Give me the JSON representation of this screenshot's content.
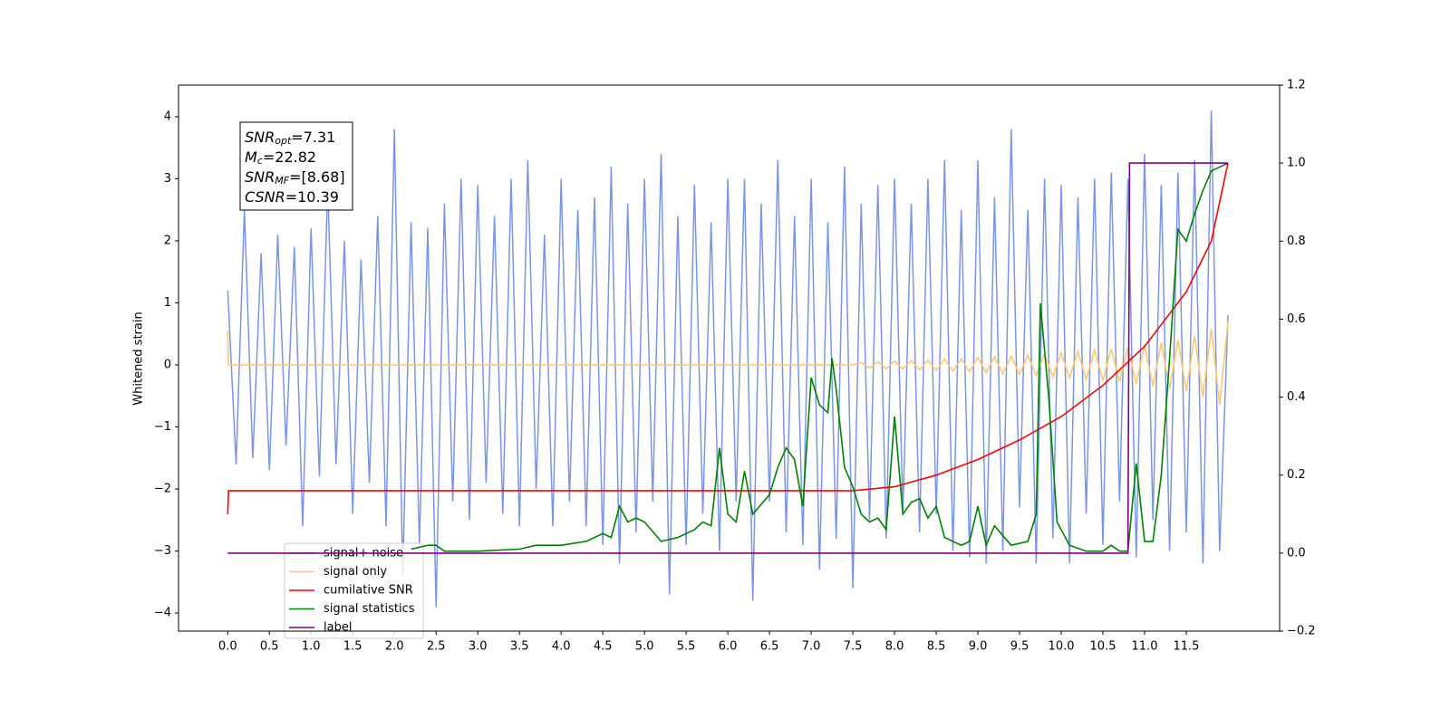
{
  "chart_data": {
    "type": "line",
    "y_label": "Whitened strain",
    "xlim": [
      -0.59,
      12.62
    ],
    "ylim": [
      -4.29,
      4.51
    ],
    "y2lim": [
      -0.2,
      1.2
    ],
    "xticks": [
      {
        "value": 0,
        "label": "0.0"
      },
      0.5,
      {
        "value": 1,
        "label": "1.0"
      },
      1.5,
      {
        "value": 2,
        "label": "2.0"
      },
      2.5,
      {
        "value": 3,
        "label": "3.0"
      },
      3.5,
      {
        "value": 4,
        "label": "4.0"
      },
      4.5,
      {
        "value": 5,
        "label": "5.0"
      },
      5.5,
      {
        "value": 6,
        "label": "6.0"
      },
      6.5,
      {
        "value": 7,
        "label": "7.0"
      },
      7.5,
      {
        "value": 8,
        "label": "8.0"
      },
      8.5,
      {
        "value": 9,
        "label": "9.0"
      },
      9.5,
      {
        "value": 10,
        "label": "10.0"
      },
      10.5,
      {
        "value": 11,
        "label": "11.0"
      },
      11.5
    ],
    "yticks": [
      {
        "value": -4,
        "label": "−4"
      },
      {
        "value": -3,
        "label": "−3"
      },
      {
        "value": -2,
        "label": "−2"
      },
      {
        "value": -1,
        "label": "−1"
      },
      0,
      1,
      2,
      3,
      4
    ],
    "y2ticks": [
      {
        "value": -0.2,
        "label": "−0.2"
      },
      {
        "value": 0,
        "label": "0.0"
      },
      0.2,
      0.4,
      0.6,
      0.8,
      {
        "value": 1,
        "label": "1.0"
      },
      1.2
    ],
    "legend": "lower left",
    "annotations": [
      {
        "text": "SNR",
        "sub": "opt",
        "value": "=7.31"
      },
      {
        "text": "M",
        "sub": "c",
        "value": "=22.82"
      },
      {
        "text": "SNR",
        "sub": "MF",
        "value": "=[8.68]"
      },
      {
        "text": "CSNR",
        "value": "=10.39"
      }
    ],
    "series": [
      {
        "name": "signal+ noise",
        "color": "#7b95e6",
        "x": [
          0,
          0.1,
          0.2,
          0.3,
          0.4,
          0.5,
          0.6,
          0.7,
          0.8,
          0.9,
          1,
          1.1,
          1.2,
          1.3,
          1.4,
          1.5,
          1.6,
          1.7,
          1.8,
          1.9,
          2,
          2.1,
          2.2,
          2.3,
          2.4,
          2.5,
          2.6,
          2.7,
          2.8,
          2.9,
          3,
          3.1,
          3.2,
          3.3,
          3.4,
          3.5,
          3.6,
          3.7,
          3.8,
          3.9,
          4,
          4.1,
          4.2,
          4.3,
          4.4,
          4.5,
          4.6,
          4.7,
          4.8,
          4.9,
          5,
          5.1,
          5.2,
          5.3,
          5.4,
          5.5,
          5.6,
          5.7,
          5.8,
          5.9,
          6,
          6.1,
          6.2,
          6.3,
          6.4,
          6.5,
          6.6,
          6.7,
          6.8,
          6.9,
          7,
          7.1,
          7.2,
          7.3,
          7.4,
          7.5,
          7.6,
          7.7,
          7.8,
          7.9,
          8,
          8.1,
          8.2,
          8.3,
          8.4,
          8.5,
          8.6,
          8.7,
          8.8,
          8.9,
          9,
          9.1,
          9.2,
          9.3,
          9.4,
          9.5,
          9.6,
          9.7,
          9.8,
          9.9,
          10,
          10.1,
          10.2,
          10.3,
          10.4,
          10.5,
          10.6,
          10.7,
          10.8,
          10.9,
          11,
          11.1,
          11.2,
          11.3,
          11.4,
          11.5,
          11.6,
          11.7,
          11.8,
          11.9,
          12
        ],
        "values": [
          1.2,
          -1.6,
          2.5,
          -1.5,
          1.8,
          -1.7,
          2.1,
          -1.3,
          1.9,
          -2.6,
          2.2,
          -1.8,
          2.9,
          -1.6,
          2.0,
          -2.4,
          1.7,
          -1.9,
          2.4,
          -2.6,
          3.8,
          -3.4,
          2.3,
          -2.9,
          2.2,
          -3.9,
          2.6,
          -2.2,
          3.0,
          -2.5,
          2.9,
          -1.9,
          2.4,
          -2.4,
          3.0,
          -2.6,
          3.3,
          -2.0,
          2.1,
          -2.6,
          3.0,
          -2.2,
          2.5,
          -2.6,
          2.7,
          -2.9,
          3.2,
          -3.2,
          2.6,
          -2.7,
          3.0,
          -2.2,
          3.4,
          -3.7,
          2.4,
          -2.9,
          2.9,
          -2.4,
          2.3,
          -3.0,
          3.0,
          -2.2,
          3.0,
          -3.8,
          2.6,
          -2.2,
          3.3,
          -2.7,
          2.4,
          -2.9,
          3.0,
          -3.3,
          2.3,
          -2.8,
          3.2,
          -3.6,
          2.6,
          -2.5,
          2.9,
          -2.8,
          3.0,
          -2.4,
          2.6,
          -2.7,
          3.0,
          -2.4,
          3.3,
          -3.0,
          2.5,
          -3.1,
          3.3,
          -3.2,
          2.7,
          -3.0,
          3.8,
          -2.3,
          2.5,
          -3.2,
          3.0,
          -2.8,
          2.9,
          -3.2,
          2.7,
          -2.4,
          3.0,
          -2.9,
          3.1,
          -2.2,
          3.0,
          -3.1,
          3.4,
          -2.5,
          2.9,
          -3.0,
          3.1,
          -2.7,
          3.3,
          -3.2,
          4.1,
          -3.0,
          0.8
        ]
      },
      {
        "name": "signal only",
        "color": "#ffc870",
        "x": [
          0,
          0.01,
          7.5,
          7.6,
          7.7,
          7.8,
          7.9,
          8,
          8.1,
          8.2,
          8.3,
          8.4,
          8.5,
          8.6,
          8.7,
          8.8,
          8.9,
          9,
          9.1,
          9.2,
          9.3,
          9.4,
          9.5,
          9.6,
          9.7,
          9.8,
          9.9,
          10,
          10.1,
          10.2,
          10.3,
          10.4,
          10.5,
          10.6,
          10.7,
          10.8,
          10.9,
          11,
          11.1,
          11.2,
          11.3,
          11.4,
          11.5,
          11.6,
          11.7,
          11.8,
          11.9,
          12
        ],
        "values": [
          0.55,
          0,
          0,
          0.04,
          -0.05,
          0.05,
          -0.06,
          0.06,
          -0.07,
          0.07,
          -0.08,
          0.08,
          -0.09,
          0.09,
          -0.1,
          0.1,
          -0.11,
          0.12,
          -0.12,
          0.13,
          -0.14,
          0.14,
          -0.15,
          0.16,
          -0.17,
          0.18,
          -0.19,
          0.2,
          -0.21,
          0.22,
          -0.23,
          0.24,
          -0.25,
          0.26,
          -0.27,
          0.28,
          -0.3,
          0.32,
          -0.34,
          0.36,
          -0.38,
          0.4,
          -0.43,
          0.47,
          -0.52,
          0.58,
          -0.64,
          0.7
        ]
      },
      {
        "name": "cumilative SNR",
        "color": "#ff0000",
        "axis": "y2",
        "x": [
          0,
          0.01,
          7.5,
          8,
          8.5,
          9,
          9.5,
          10,
          10.5,
          11,
          11.5,
          11.8,
          12
        ],
        "values": [
          0.1,
          0.16,
          0.16,
          0.17,
          0.2,
          0.24,
          0.29,
          0.35,
          0.43,
          0.53,
          0.67,
          0.8,
          1.0
        ]
      },
      {
        "name": "signal statistics",
        "color": "#008000",
        "axis": "y2",
        "x": [
          2.2,
          2.4,
          2.5,
          2.6,
          3,
          3.5,
          3.7,
          4,
          4.3,
          4.5,
          4.6,
          4.7,
          4.8,
          4.9,
          5,
          5.2,
          5.4,
          5.6,
          5.7,
          5.8,
          5.9,
          6,
          6.1,
          6.2,
          6.3,
          6.5,
          6.6,
          6.7,
          6.8,
          6.9,
          7,
          7.1,
          7.2,
          7.25,
          7.3,
          7.4,
          7.5,
          7.6,
          7.7,
          7.8,
          7.9,
          8,
          8.1,
          8.2,
          8.3,
          8.4,
          8.5,
          8.6,
          8.8,
          8.9,
          9,
          9.1,
          9.2,
          9.4,
          9.6,
          9.7,
          9.75,
          9.85,
          9.95,
          10.1,
          10.3,
          10.5,
          10.6,
          10.7,
          10.8,
          10.9,
          11,
          11.1,
          11.2,
          11.3,
          11.4,
          11.5,
          11.6,
          11.7,
          11.8,
          12
        ],
        "values": [
          0.01,
          0.02,
          0.02,
          0.005,
          0.005,
          0.01,
          0.02,
          0.02,
          0.03,
          0.05,
          0.04,
          0.12,
          0.08,
          0.09,
          0.08,
          0.03,
          0.04,
          0.06,
          0.08,
          0.07,
          0.27,
          0.1,
          0.08,
          0.21,
          0.1,
          0.15,
          0.22,
          0.27,
          0.24,
          0.12,
          0.45,
          0.38,
          0.36,
          0.5,
          0.42,
          0.22,
          0.17,
          0.1,
          0.08,
          0.09,
          0.06,
          0.35,
          0.1,
          0.13,
          0.14,
          0.09,
          0.12,
          0.04,
          0.02,
          0.03,
          0.12,
          0.02,
          0.07,
          0.02,
          0.03,
          0.1,
          0.64,
          0.4,
          0.08,
          0.02,
          0.005,
          0.005,
          0.02,
          0.005,
          0.005,
          0.23,
          0.03,
          0.03,
          0.2,
          0.5,
          0.83,
          0.8,
          0.87,
          0.93,
          0.98,
          1.0
        ]
      },
      {
        "name": "label",
        "color": "#800080",
        "axis": "y2",
        "x": [
          0,
          10.8,
          10.82,
          12
        ],
        "values": [
          0,
          0,
          1,
          1
        ]
      }
    ]
  }
}
